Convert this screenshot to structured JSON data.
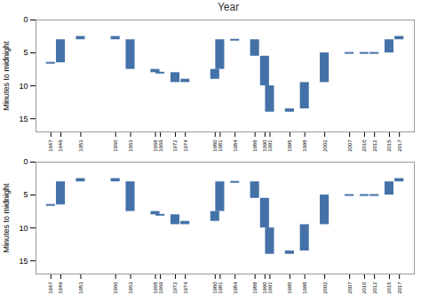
{
  "chart_data": [
    {
      "type": "waterfall",
      "title": "Year",
      "x": [
        1947,
        1949,
        1953,
        1960,
        1963,
        1968,
        1969,
        1972,
        1974,
        1980,
        1981,
        1984,
        1988,
        1990,
        1991,
        1995,
        1998,
        2002,
        2007,
        2010,
        2012,
        2015,
        2017
      ],
      "values": [
        6.5,
        3.0,
        2.5,
        3.0,
        7.5,
        8.0,
        8.0,
        9.5,
        9.0,
        7.5,
        3.0,
        3.0,
        5.5,
        10.0,
        14.0,
        13.5,
        9.5,
        5.0,
        5.0,
        5.0,
        5.0,
        3.0,
        2.5
      ],
      "color": "#4472a8",
      "xlim": [
        1944,
        2020
      ],
      "xticks": [
        1947,
        1949,
        1953,
        1960,
        1963,
        1968,
        1969,
        1972,
        1974,
        1980,
        1981,
        1984,
        1988,
        1990,
        1991,
        1995,
        1998,
        2002,
        2007,
        2010,
        2012,
        2015,
        2017
      ],
      "ylim": [
        17,
        0
      ],
      "yticks": [
        0,
        5,
        10,
        15
      ],
      "ylabel": "Minutes to midnight"
    },
    {
      "type": "waterfall",
      "x": [
        1947,
        1949,
        1953,
        1960,
        1963,
        1968,
        1969,
        1972,
        1974,
        1980,
        1981,
        1984,
        1988,
        1990,
        1991,
        1995,
        1998,
        2002,
        2007,
        2010,
        2012,
        2015,
        2017
      ],
      "values": [
        6.5,
        3.0,
        2.5,
        3.0,
        7.5,
        8.0,
        8.0,
        9.5,
        9.0,
        7.5,
        3.0,
        3.0,
        5.5,
        10.0,
        14.0,
        13.5,
        9.5,
        5.0,
        5.0,
        5.0,
        5.0,
        3.0,
        2.5
      ],
      "color": "#4472a8",
      "xlim": [
        1944,
        2020
      ],
      "xticks": [
        1947,
        1949,
        1953,
        1960,
        1963,
        1968,
        1969,
        1972,
        1974,
        1980,
        1981,
        1984,
        1988,
        1990,
        1991,
        1995,
        1998,
        2002,
        2007,
        2010,
        2012,
        2015,
        2017
      ],
      "ylim": [
        17,
        0
      ],
      "yticks": [
        0,
        5,
        10,
        15
      ],
      "ylabel": "Minutes to midnight"
    }
  ]
}
